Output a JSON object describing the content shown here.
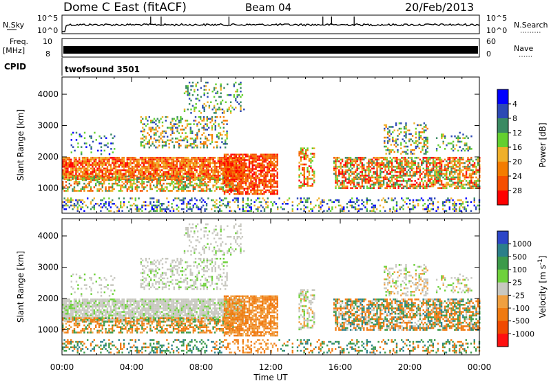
{
  "header": {
    "station": "Dome C East (fitACF)",
    "beam": "Beam 04",
    "date": "20/Feb/2013"
  },
  "strip_labels": {
    "nsky": "N.Sky",
    "nsearch": "N.Search",
    "freq_line1": "Freq.",
    "freq_line2": "[MHz]",
    "nave": "Nave",
    "cpid": "CPID",
    "nsky_top": "10^5",
    "nsky_bottom": "10^0",
    "nsearch_top": "10^5",
    "nsearch_bottom": "10^0",
    "freq_top": "10",
    "freq_bottom": "8",
    "nave_top": "60",
    "nave_bottom": "0"
  },
  "program": "twofsound 3501",
  "chart_data": [
    {
      "type": "heatmap",
      "panel": "power",
      "ylabel": "Slant Range [km]",
      "y_ticks": [
        "1000",
        "2000",
        "3000",
        "4000"
      ],
      "ylim": [
        200,
        4550
      ],
      "xlim": [
        0,
        24
      ],
      "colorbar": {
        "label": "Power [dB]",
        "ticks": [
          "4",
          "8",
          "12",
          "16",
          "20",
          "24",
          "28"
        ],
        "colors": [
          "#0000ff",
          "#2c49b5",
          "#3a8a62",
          "#63d030",
          "#f0b02a",
          "#f47c00",
          "#f54e00",
          "#ff0000"
        ]
      }
    },
    {
      "type": "heatmap",
      "panel": "velocity",
      "ylabel": "Slant Range [km]",
      "y_ticks": [
        "1000",
        "2000",
        "3000",
        "4000"
      ],
      "ylim": [
        200,
        4550
      ],
      "xlim": [
        0,
        24
      ],
      "xlabel": "Time UT",
      "x_ticks": [
        "00:00",
        "04:00",
        "08:00",
        "12:00",
        "16:00",
        "20:00",
        "00:00"
      ],
      "colorbar": {
        "label": "Velocity [m s^-1]",
        "ticks": [
          "1000",
          "500",
          "100",
          "25",
          "-25",
          "-100",
          "-500",
          "-1000"
        ],
        "colors": [
          "#2d46c8",
          "#2b7f8a",
          "#3c9a4a",
          "#6fd13c",
          "#c8c8c0",
          "#f0a040",
          "#f07a10",
          "#f04a00",
          "#ff1010"
        ]
      }
    }
  ]
}
